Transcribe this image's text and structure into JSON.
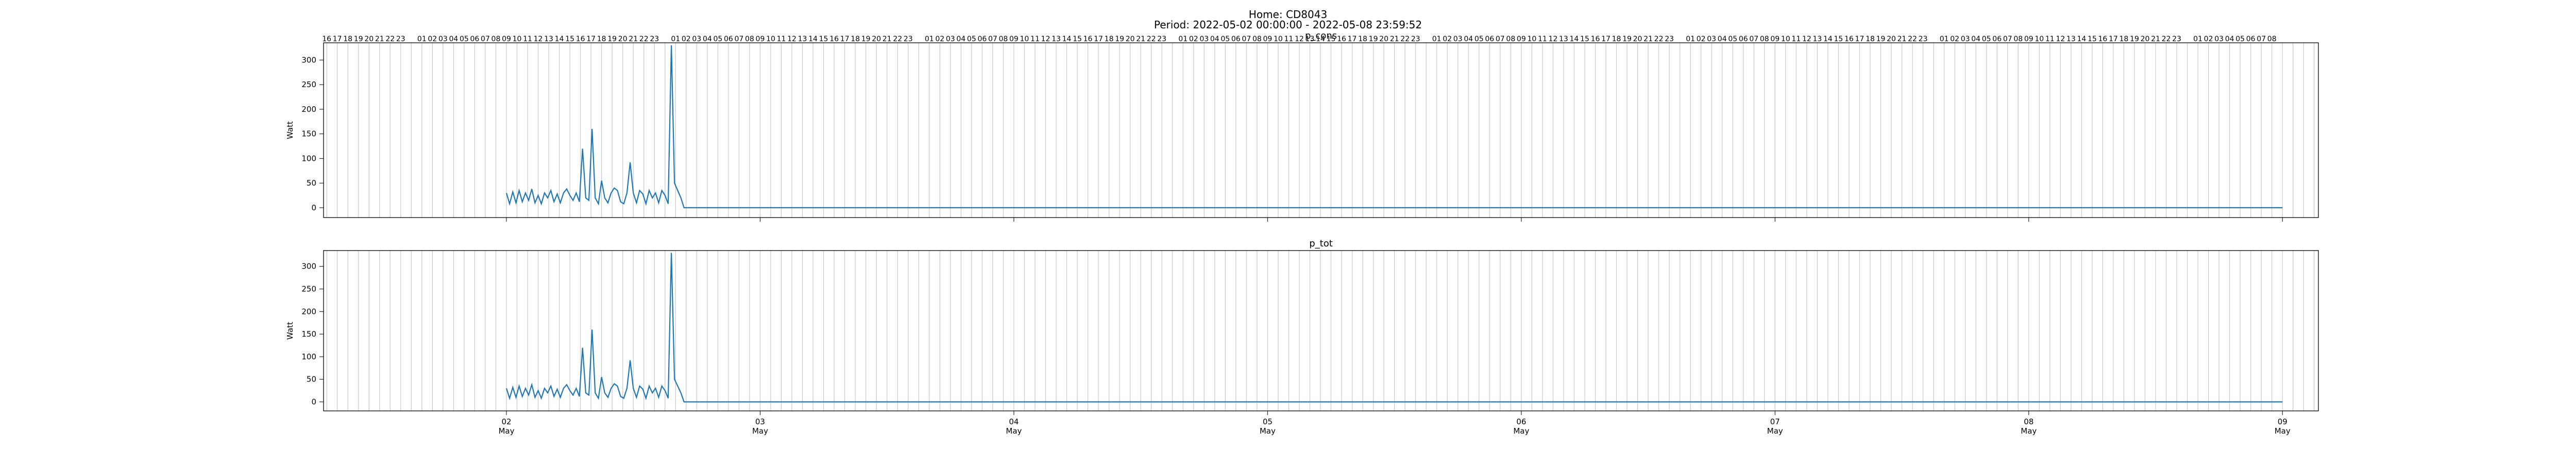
{
  "figure": {
    "title_line1": "Home: CD8043",
    "title_line2": "Period: 2022-05-02 00:00:00 - 2022-05-08 23:59:52"
  },
  "chart_data": [
    {
      "type": "line",
      "title": "p_cons",
      "ylabel": "Watt",
      "xlabel": "",
      "ylim": [
        -20,
        335
      ],
      "yticks": [
        0,
        50,
        100,
        150,
        200,
        250,
        300
      ],
      "grid": "vertical hourly lines",
      "line_color": "#1f77b4",
      "day_ticks": [
        {
          "label": "02",
          "sub": "May",
          "hour": 0
        },
        {
          "label": "03",
          "sub": "May",
          "hour": 24
        },
        {
          "label": "04",
          "sub": "May",
          "hour": 48
        },
        {
          "label": "05",
          "sub": "May",
          "hour": 72
        },
        {
          "label": "06",
          "sub": "May",
          "hour": 96
        },
        {
          "label": "07",
          "sub": "May",
          "hour": 120
        },
        {
          "label": "08",
          "sub": "May",
          "hour": 144
        },
        {
          "label": "09",
          "sub": "May",
          "hour": 168
        }
      ],
      "top_hour_ticks": [
        "16",
        "17",
        "18",
        "19",
        "20",
        "21",
        "22",
        "23",
        "",
        "01",
        "02",
        "03",
        "04",
        "05",
        "06",
        "07",
        "08",
        "09",
        "10",
        "11",
        "12",
        "13",
        "14",
        "15",
        "16",
        "17",
        "18",
        "19",
        "20",
        "21",
        "22",
        "23",
        "",
        "01",
        "02",
        "03",
        "04",
        "05",
        "06",
        "07",
        "08",
        "09",
        "10",
        "11",
        "12",
        "13",
        "14",
        "15",
        "16",
        "17",
        "18",
        "19",
        "20",
        "21",
        "22",
        "23",
        "",
        "01",
        "02",
        "03",
        "04",
        "05",
        "06",
        "07",
        "08",
        "09",
        "10",
        "11",
        "12",
        "13",
        "14",
        "15",
        "16",
        "17",
        "18",
        "19",
        "20",
        "21",
        "22",
        "23",
        "",
        "01",
        "02",
        "03",
        "04",
        "05",
        "06",
        "07",
        "08",
        "09",
        "10",
        "11",
        "12",
        "13",
        "14",
        "15",
        "16",
        "17",
        "18",
        "19",
        "20",
        "21",
        "22",
        "23",
        "",
        "01",
        "02",
        "03",
        "04",
        "05",
        "06",
        "07",
        "08",
        "09",
        "10",
        "11",
        "12",
        "13",
        "14",
        "15",
        "16",
        "17",
        "18",
        "19",
        "20",
        "21",
        "22",
        "23",
        "",
        "01",
        "02",
        "03",
        "04",
        "05",
        "06",
        "07",
        "08",
        "09",
        "10",
        "11",
        "12",
        "13",
        "14",
        "15",
        "16",
        "17",
        "18",
        "19",
        "20",
        "21",
        "22",
        "23",
        "",
        "01",
        "02",
        "03",
        "04",
        "05",
        "06",
        "07",
        "08",
        "09",
        "10",
        "11",
        "12",
        "13",
        "14",
        "15",
        "16",
        "17",
        "18",
        "19",
        "20",
        "21",
        "22",
        "23",
        "",
        "01",
        "02",
        "03",
        "04",
        "05",
        "06",
        "07",
        "08"
      ],
      "x_hours": [
        0,
        0.3,
        0.6,
        0.9,
        1.2,
        1.5,
        1.8,
        2.1,
        2.4,
        2.7,
        3.0,
        3.3,
        3.6,
        3.9,
        4.2,
        4.5,
        4.8,
        5.1,
        5.4,
        5.7,
        6.0,
        6.3,
        6.6,
        6.9,
        7.2,
        7.5,
        7.8,
        8.1,
        8.4,
        8.7,
        9.0,
        9.3,
        9.6,
        9.9,
        10.2,
        10.5,
        10.8,
        11.1,
        11.4,
        11.7,
        12.0,
        12.3,
        12.6,
        12.9,
        13.2,
        13.5,
        13.8,
        14.1,
        14.4,
        14.7,
        15.0,
        15.3,
        15.6,
        15.9,
        16.2,
        16.5,
        16.8,
        17.0,
        17.4,
        17.8,
        18.3,
        168
      ],
      "values": [
        30,
        8,
        32,
        10,
        35,
        12,
        30,
        15,
        38,
        10,
        25,
        8,
        30,
        20,
        35,
        12,
        28,
        10,
        30,
        38,
        25,
        15,
        30,
        12,
        120,
        20,
        15,
        160,
        20,
        8,
        55,
        20,
        10,
        30,
        40,
        35,
        12,
        8,
        30,
        92,
        30,
        10,
        35,
        28,
        8,
        35,
        20,
        30,
        10,
        35,
        25,
        8,
        330,
        50,
        35,
        20,
        0,
        0,
        0,
        0,
        0,
        0
      ]
    },
    {
      "type": "line",
      "title": "p_tot",
      "ylabel": "Watt",
      "xlabel": "",
      "ylim": [
        -20,
        335
      ],
      "yticks": [
        0,
        50,
        100,
        150,
        200,
        250,
        300
      ],
      "grid": "vertical hourly lines",
      "line_color": "#1f77b4",
      "day_ticks": [
        {
          "label": "02",
          "sub": "May",
          "hour": 0
        },
        {
          "label": "03",
          "sub": "May",
          "hour": 24
        },
        {
          "label": "04",
          "sub": "May",
          "hour": 48
        },
        {
          "label": "05",
          "sub": "May",
          "hour": 72
        },
        {
          "label": "06",
          "sub": "May",
          "hour": 96
        },
        {
          "label": "07",
          "sub": "May",
          "hour": 120
        },
        {
          "label": "08",
          "sub": "May",
          "hour": 144
        },
        {
          "label": "09",
          "sub": "May",
          "hour": 168
        }
      ],
      "x_hours": [
        0,
        0.3,
        0.6,
        0.9,
        1.2,
        1.5,
        1.8,
        2.1,
        2.4,
        2.7,
        3.0,
        3.3,
        3.6,
        3.9,
        4.2,
        4.5,
        4.8,
        5.1,
        5.4,
        5.7,
        6.0,
        6.3,
        6.6,
        6.9,
        7.2,
        7.5,
        7.8,
        8.1,
        8.4,
        8.7,
        9.0,
        9.3,
        9.6,
        9.9,
        10.2,
        10.5,
        10.8,
        11.1,
        11.4,
        11.7,
        12.0,
        12.3,
        12.6,
        12.9,
        13.2,
        13.5,
        13.8,
        14.1,
        14.4,
        14.7,
        15.0,
        15.3,
        15.6,
        15.9,
        16.2,
        16.5,
        16.8,
        17.0,
        17.4,
        17.8,
        18.3,
        168
      ],
      "values": [
        30,
        8,
        32,
        10,
        35,
        12,
        30,
        15,
        38,
        10,
        25,
        8,
        30,
        20,
        35,
        12,
        28,
        10,
        30,
        38,
        25,
        15,
        30,
        12,
        120,
        20,
        15,
        160,
        20,
        8,
        55,
        20,
        10,
        30,
        40,
        35,
        12,
        8,
        30,
        92,
        30,
        10,
        35,
        28,
        8,
        35,
        20,
        30,
        10,
        35,
        25,
        8,
        330,
        50,
        35,
        20,
        0,
        0,
        0,
        0,
        0,
        0
      ]
    }
  ]
}
